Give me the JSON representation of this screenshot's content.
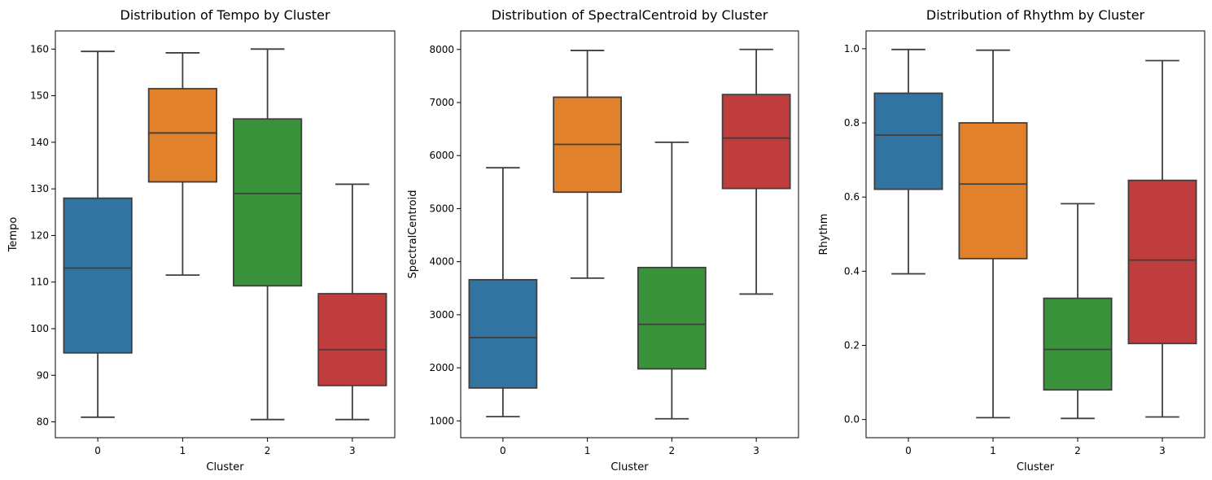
{
  "chart_data": [
    {
      "type": "box",
      "title": "Distribution of Tempo by Cluster",
      "xlabel": "Cluster",
      "ylabel": "Tempo",
      "categories": [
        "0",
        "1",
        "2",
        "3"
      ],
      "ylim": [
        76.6,
        163.9
      ],
      "yticks": [
        80,
        90,
        100,
        110,
        120,
        130,
        140,
        150,
        160
      ],
      "boxes": [
        {
          "whisker_low": 81.0,
          "q1": 94.8,
          "median": 113.0,
          "q3": 128.0,
          "whisker_high": 159.5,
          "color": "#3274a1"
        },
        {
          "whisker_low": 111.5,
          "q1": 131.5,
          "median": 142.0,
          "q3": 151.5,
          "whisker_high": 159.2,
          "color": "#e1812c"
        },
        {
          "whisker_low": 80.5,
          "q1": 109.2,
          "median": 129.0,
          "q3": 145.0,
          "whisker_high": 160.0,
          "color": "#3a923a"
        },
        {
          "whisker_low": 80.5,
          "q1": 87.8,
          "median": 95.5,
          "q3": 107.5,
          "whisker_high": 131.0,
          "color": "#c03d3e"
        }
      ]
    },
    {
      "type": "box",
      "title": "Distribution of SpectralCentroid by Cluster",
      "xlabel": "Cluster",
      "ylabel": "SpectralCentroid",
      "categories": [
        "0",
        "1",
        "2",
        "3"
      ],
      "ylim": [
        683,
        8349
      ],
      "yticks": [
        1000,
        2000,
        3000,
        4000,
        5000,
        6000,
        7000,
        8000
      ],
      "boxes": [
        {
          "whisker_low": 1080,
          "q1": 1620,
          "median": 2570,
          "q3": 3660,
          "whisker_high": 5770,
          "color": "#3274a1"
        },
        {
          "whisker_low": 3690,
          "q1": 5310,
          "median": 6210,
          "q3": 7100,
          "whisker_high": 7980,
          "color": "#e1812c"
        },
        {
          "whisker_low": 1040,
          "q1": 1980,
          "median": 2820,
          "q3": 3890,
          "whisker_high": 6250,
          "color": "#3a923a"
        },
        {
          "whisker_low": 3390,
          "q1": 5380,
          "median": 6330,
          "q3": 7150,
          "whisker_high": 8000,
          "color": "#c03d3e"
        }
      ]
    },
    {
      "type": "box",
      "title": "Distribution of Rhythm by Cluster",
      "xlabel": "Cluster",
      "ylabel": "Rhythm",
      "categories": [
        "0",
        "1",
        "2",
        "3"
      ],
      "ylim": [
        -0.049,
        1.048
      ],
      "yticks": [
        "0.0",
        "0.2",
        "0.4",
        "0.6",
        "0.8",
        "1.0"
      ],
      "boxes": [
        {
          "whisker_low": 0.393,
          "q1": 0.621,
          "median": 0.767,
          "q3": 0.88,
          "whisker_high": 0.998,
          "color": "#3274a1"
        },
        {
          "whisker_low": 0.005,
          "q1": 0.434,
          "median": 0.635,
          "q3": 0.8,
          "whisker_high": 0.996,
          "color": "#e1812c"
        },
        {
          "whisker_low": 0.003,
          "q1": 0.08,
          "median": 0.189,
          "q3": 0.327,
          "whisker_high": 0.582,
          "color": "#3a923a"
        },
        {
          "whisker_low": 0.007,
          "q1": 0.205,
          "median": 0.43,
          "q3": 0.645,
          "whisker_high": 0.968,
          "color": "#c03d3e"
        }
      ]
    }
  ]
}
